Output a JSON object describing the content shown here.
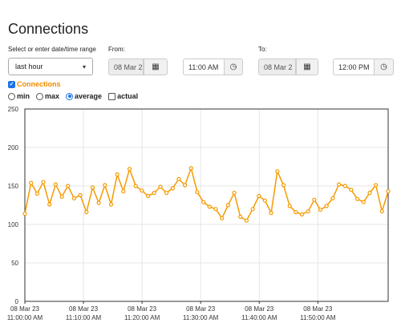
{
  "page": {
    "title": "Connections"
  },
  "range": {
    "label": "Select or enter date/time range",
    "selected": "last hour",
    "from_label": "From:",
    "from_date": "08 Mar 2",
    "from_time": "11:00 AM",
    "to_label": "To:",
    "to_date": "08 Mar 2",
    "to_time": "12:00 PM"
  },
  "series_toggle": {
    "label": "Connections",
    "checked": true
  },
  "aggregation": {
    "options": [
      {
        "label": "min",
        "type": "radio",
        "selected": false
      },
      {
        "label": "max",
        "type": "radio",
        "selected": false
      },
      {
        "label": "average",
        "type": "radio",
        "selected": true
      },
      {
        "label": "actual",
        "type": "checkbox",
        "selected": false
      }
    ]
  },
  "colors": {
    "series": "#f59a00",
    "checkbox_accent": "#1a73e8",
    "grid": "#e6e6e6"
  },
  "chart_data": {
    "type": "line",
    "grid": true,
    "ylim": [
      0,
      250
    ],
    "yticks": [
      "0",
      "50",
      "100",
      "150",
      "200",
      "250"
    ],
    "xlim_minutes": [
      0,
      62
    ],
    "xticks": [
      {
        "t": 0,
        "line1": "08 Mar 23",
        "line2": "11:00:00 AM"
      },
      {
        "t": 10,
        "line1": "08 Mar 23",
        "line2": "11:10:00 AM"
      },
      {
        "t": 20,
        "line1": "08 Mar 23",
        "line2": "11:20:00 AM"
      },
      {
        "t": 30,
        "line1": "08 Mar 23",
        "line2": "11:30:00 AM"
      },
      {
        "t": 40,
        "line1": "08 Mar 23",
        "line2": "11:40:00 AM"
      },
      {
        "t": 50,
        "line1": "08 Mar 23",
        "line2": "11:50:00 AM"
      }
    ],
    "series": [
      {
        "name": "Connections",
        "values": [
          114,
          154,
          140,
          155,
          126,
          152,
          136,
          150,
          134,
          138,
          116,
          148,
          128,
          151,
          126,
          165,
          143,
          172,
          150,
          144,
          137,
          141,
          149,
          141,
          147,
          159,
          151,
          173,
          142,
          129,
          123,
          120,
          108,
          125,
          141,
          110,
          105,
          120,
          137,
          131,
          115,
          169,
          151,
          124,
          116,
          113,
          117,
          132,
          119,
          124,
          134,
          152,
          150,
          145,
          133,
          129,
          141,
          151,
          117,
          143
        ]
      }
    ]
  }
}
